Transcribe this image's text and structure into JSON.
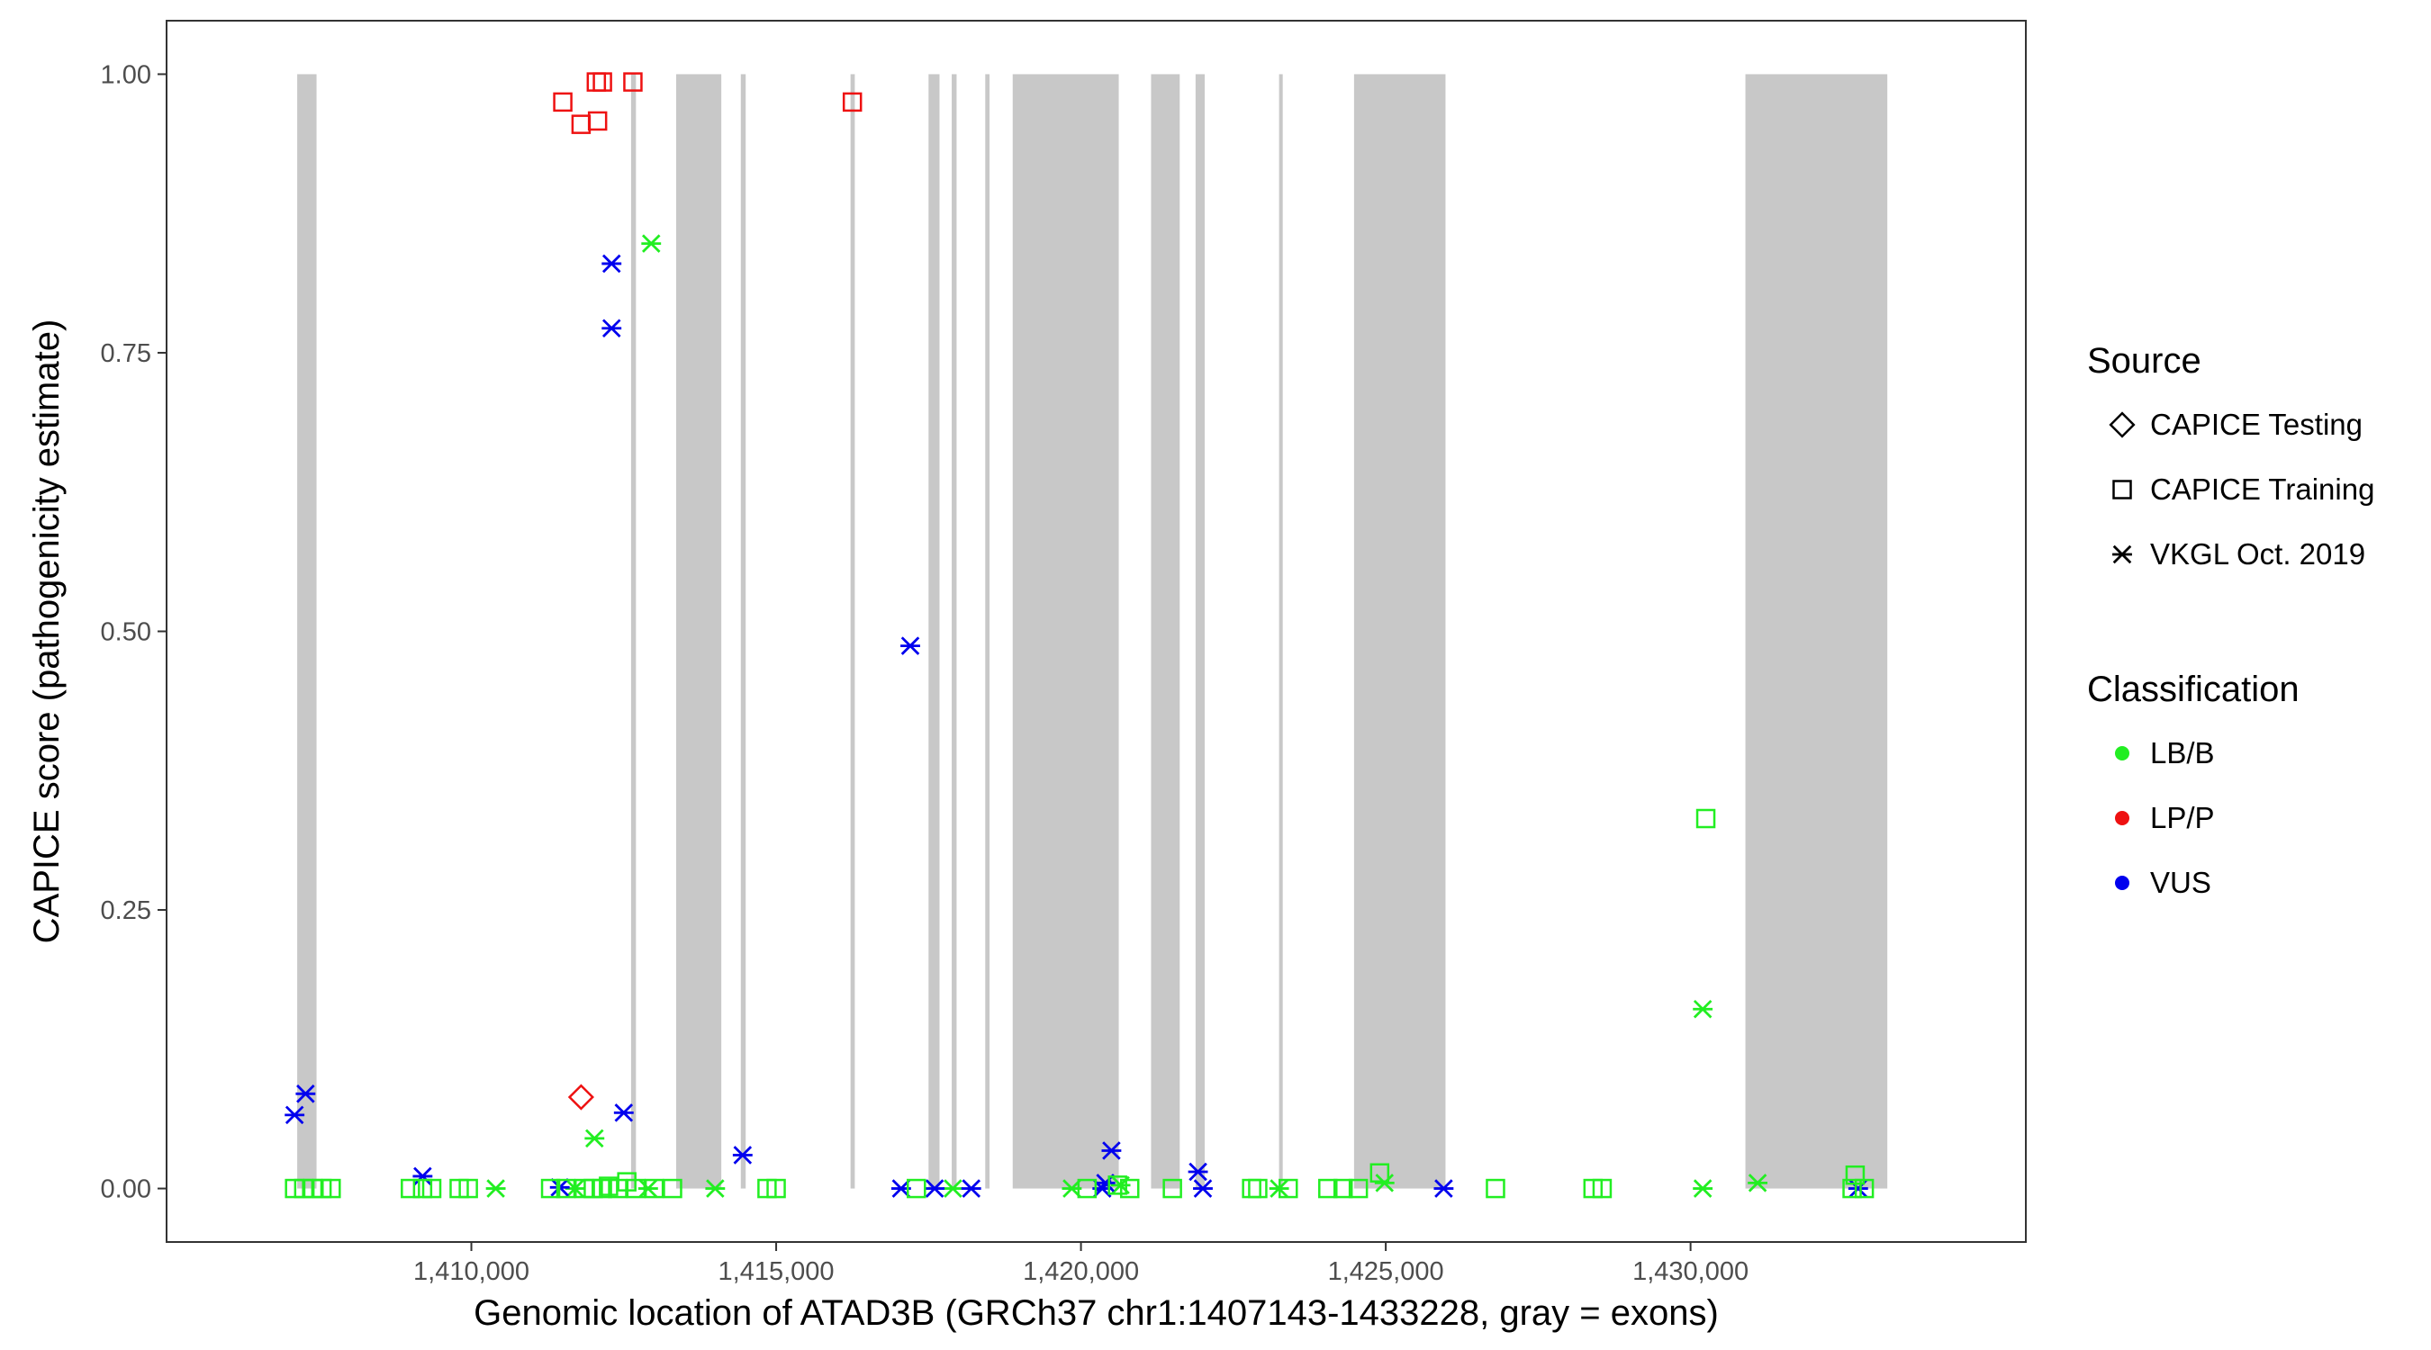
{
  "chart_data": {
    "type": "scatter",
    "title": "",
    "xlabel": "Genomic location of ATAD3B (GRCh37 chr1:1407143-1433228, gray = exons)",
    "ylabel": "CAPICE score (pathogenicity estimate)",
    "xlim": [
      1405000,
      1435500
    ],
    "ylim": [
      -0.048,
      1.048
    ],
    "x_ticks": [
      1410000,
      1415000,
      1420000,
      1425000,
      1430000
    ],
    "x_tick_labels": [
      "1,410,000",
      "1,415,000",
      "1,420,000",
      "1,425,000",
      "1,430,000"
    ],
    "y_ticks": [
      0,
      0.25,
      0.5,
      0.75,
      1.0
    ],
    "y_tick_labels": [
      "0.00",
      "0.25",
      "0.50",
      "0.75",
      "1.00"
    ],
    "grid": false,
    "exons": [
      [
        1407143,
        1407460
      ],
      [
        1412620,
        1412700
      ],
      [
        1413360,
        1414100
      ],
      [
        1414420,
        1414500
      ],
      [
        1416220,
        1416290
      ],
      [
        1417500,
        1417680
      ],
      [
        1417880,
        1417960
      ],
      [
        1418430,
        1418500
      ],
      [
        1418880,
        1420620
      ],
      [
        1421150,
        1421620
      ],
      [
        1421880,
        1422030
      ],
      [
        1423250,
        1423310
      ],
      [
        1424480,
        1425980
      ],
      [
        1430900,
        1433228
      ]
    ],
    "exon_color": "#c8c8c8",
    "legend_position": "right",
    "legends": [
      {
        "title": "Source",
        "items": [
          {
            "label": "CAPICE Testing",
            "symbol": "diamond"
          },
          {
            "label": "CAPICE Training",
            "symbol": "square"
          },
          {
            "label": "VKGL Oct. 2019",
            "symbol": "asterisk"
          }
        ]
      },
      {
        "title": "Classification",
        "items": [
          {
            "label": "LB/B",
            "color": "#22ee22"
          },
          {
            "label": "LP/P",
            "color": "#ee1111"
          },
          {
            "label": "VUS",
            "color": "#0000ee"
          }
        ]
      }
    ],
    "series": [
      {
        "source": "CAPICE Training",
        "classification": "LP/P",
        "symbol": "square",
        "color": "#ee1111",
        "points": [
          [
            1411500,
            0.975
          ],
          [
            1411800,
            0.955
          ],
          [
            1412050,
            0.993
          ],
          [
            1412150,
            0.993
          ],
          [
            1412070,
            0.958
          ],
          [
            1412650,
            0.993
          ],
          [
            1416250,
            0.975
          ]
        ]
      },
      {
        "source": "CAPICE Testing",
        "classification": "LP/P",
        "symbol": "diamond",
        "color": "#ee1111",
        "points": [
          [
            1411800,
            0.082
          ]
        ]
      },
      {
        "source": "VKGL Oct. 2019",
        "classification": "LB/B",
        "symbol": "asterisk",
        "color": "#22ee22",
        "points": [
          [
            1412950,
            0.848
          ],
          [
            1412020,
            0.045
          ],
          [
            1430200,
            0.161
          ],
          [
            1431100,
            0.005
          ],
          [
            1430200,
            0.0
          ],
          [
            1424980,
            0.005
          ],
          [
            1410400,
            0.0
          ],
          [
            1414000,
            0.0
          ],
          [
            1417900,
            0.0
          ],
          [
            1419850,
            0.0
          ],
          [
            1420650,
            0.003
          ],
          [
            1423250,
            0.0
          ],
          [
            1412900,
            0.0
          ],
          [
            1411700,
            0.0
          ]
        ]
      },
      {
        "source": "VKGL Oct. 2019",
        "classification": "VUS",
        "symbol": "asterisk",
        "color": "#0000ee",
        "points": [
          [
            1412300,
            0.83
          ],
          [
            1412300,
            0.772
          ],
          [
            1417200,
            0.487
          ],
          [
            1407280,
            0.085
          ],
          [
            1407100,
            0.066
          ],
          [
            1412500,
            0.068
          ],
          [
            1414450,
            0.03
          ],
          [
            1420500,
            0.034
          ],
          [
            1421920,
            0.015
          ],
          [
            1409200,
            0.011
          ],
          [
            1420400,
            0.005
          ],
          [
            1411450,
            0.001
          ],
          [
            1417050,
            0.0
          ],
          [
            1417600,
            0.0
          ],
          [
            1418200,
            0.0
          ],
          [
            1420350,
            0.0
          ],
          [
            1422000,
            0.0
          ],
          [
            1425950,
            0.0
          ],
          [
            1432750,
            0.0
          ]
        ]
      },
      {
        "source": "CAPICE Training",
        "classification": "LB/B",
        "symbol": "square",
        "color": "#22ee22",
        "points": [
          [
            1430250,
            0.332
          ],
          [
            1424900,
            0.014
          ],
          [
            1432700,
            0.012
          ],
          [
            1412550,
            0.006
          ],
          [
            1412250,
            0.002
          ],
          [
            1420600,
            0.003
          ],
          [
            1407100,
            0.0
          ],
          [
            1407250,
            0.0
          ],
          [
            1407400,
            0.0
          ],
          [
            1407550,
            0.0
          ],
          [
            1407700,
            0.0
          ],
          [
            1409000,
            0.0
          ],
          [
            1409200,
            0.0
          ],
          [
            1409350,
            0.0
          ],
          [
            1409800,
            0.0
          ],
          [
            1409950,
            0.0
          ],
          [
            1411300,
            0.0
          ],
          [
            1411550,
            0.0
          ],
          [
            1411850,
            0.0
          ],
          [
            1412000,
            0.0
          ],
          [
            1412150,
            0.0
          ],
          [
            1412400,
            0.0
          ],
          [
            1412700,
            0.0
          ],
          [
            1413000,
            0.0
          ],
          [
            1413300,
            0.0
          ],
          [
            1414850,
            0.0
          ],
          [
            1415000,
            0.0
          ],
          [
            1417300,
            0.0
          ],
          [
            1420100,
            0.0
          ],
          [
            1420800,
            0.0
          ],
          [
            1421500,
            0.0
          ],
          [
            1422800,
            0.0
          ],
          [
            1422900,
            0.0
          ],
          [
            1423400,
            0.0
          ],
          [
            1424050,
            0.0
          ],
          [
            1424300,
            0.0
          ],
          [
            1424550,
            0.0
          ],
          [
            1426800,
            0.0
          ],
          [
            1428400,
            0.0
          ],
          [
            1428550,
            0.0
          ],
          [
            1432650,
            0.0
          ],
          [
            1432850,
            0.0
          ]
        ]
      }
    ]
  }
}
